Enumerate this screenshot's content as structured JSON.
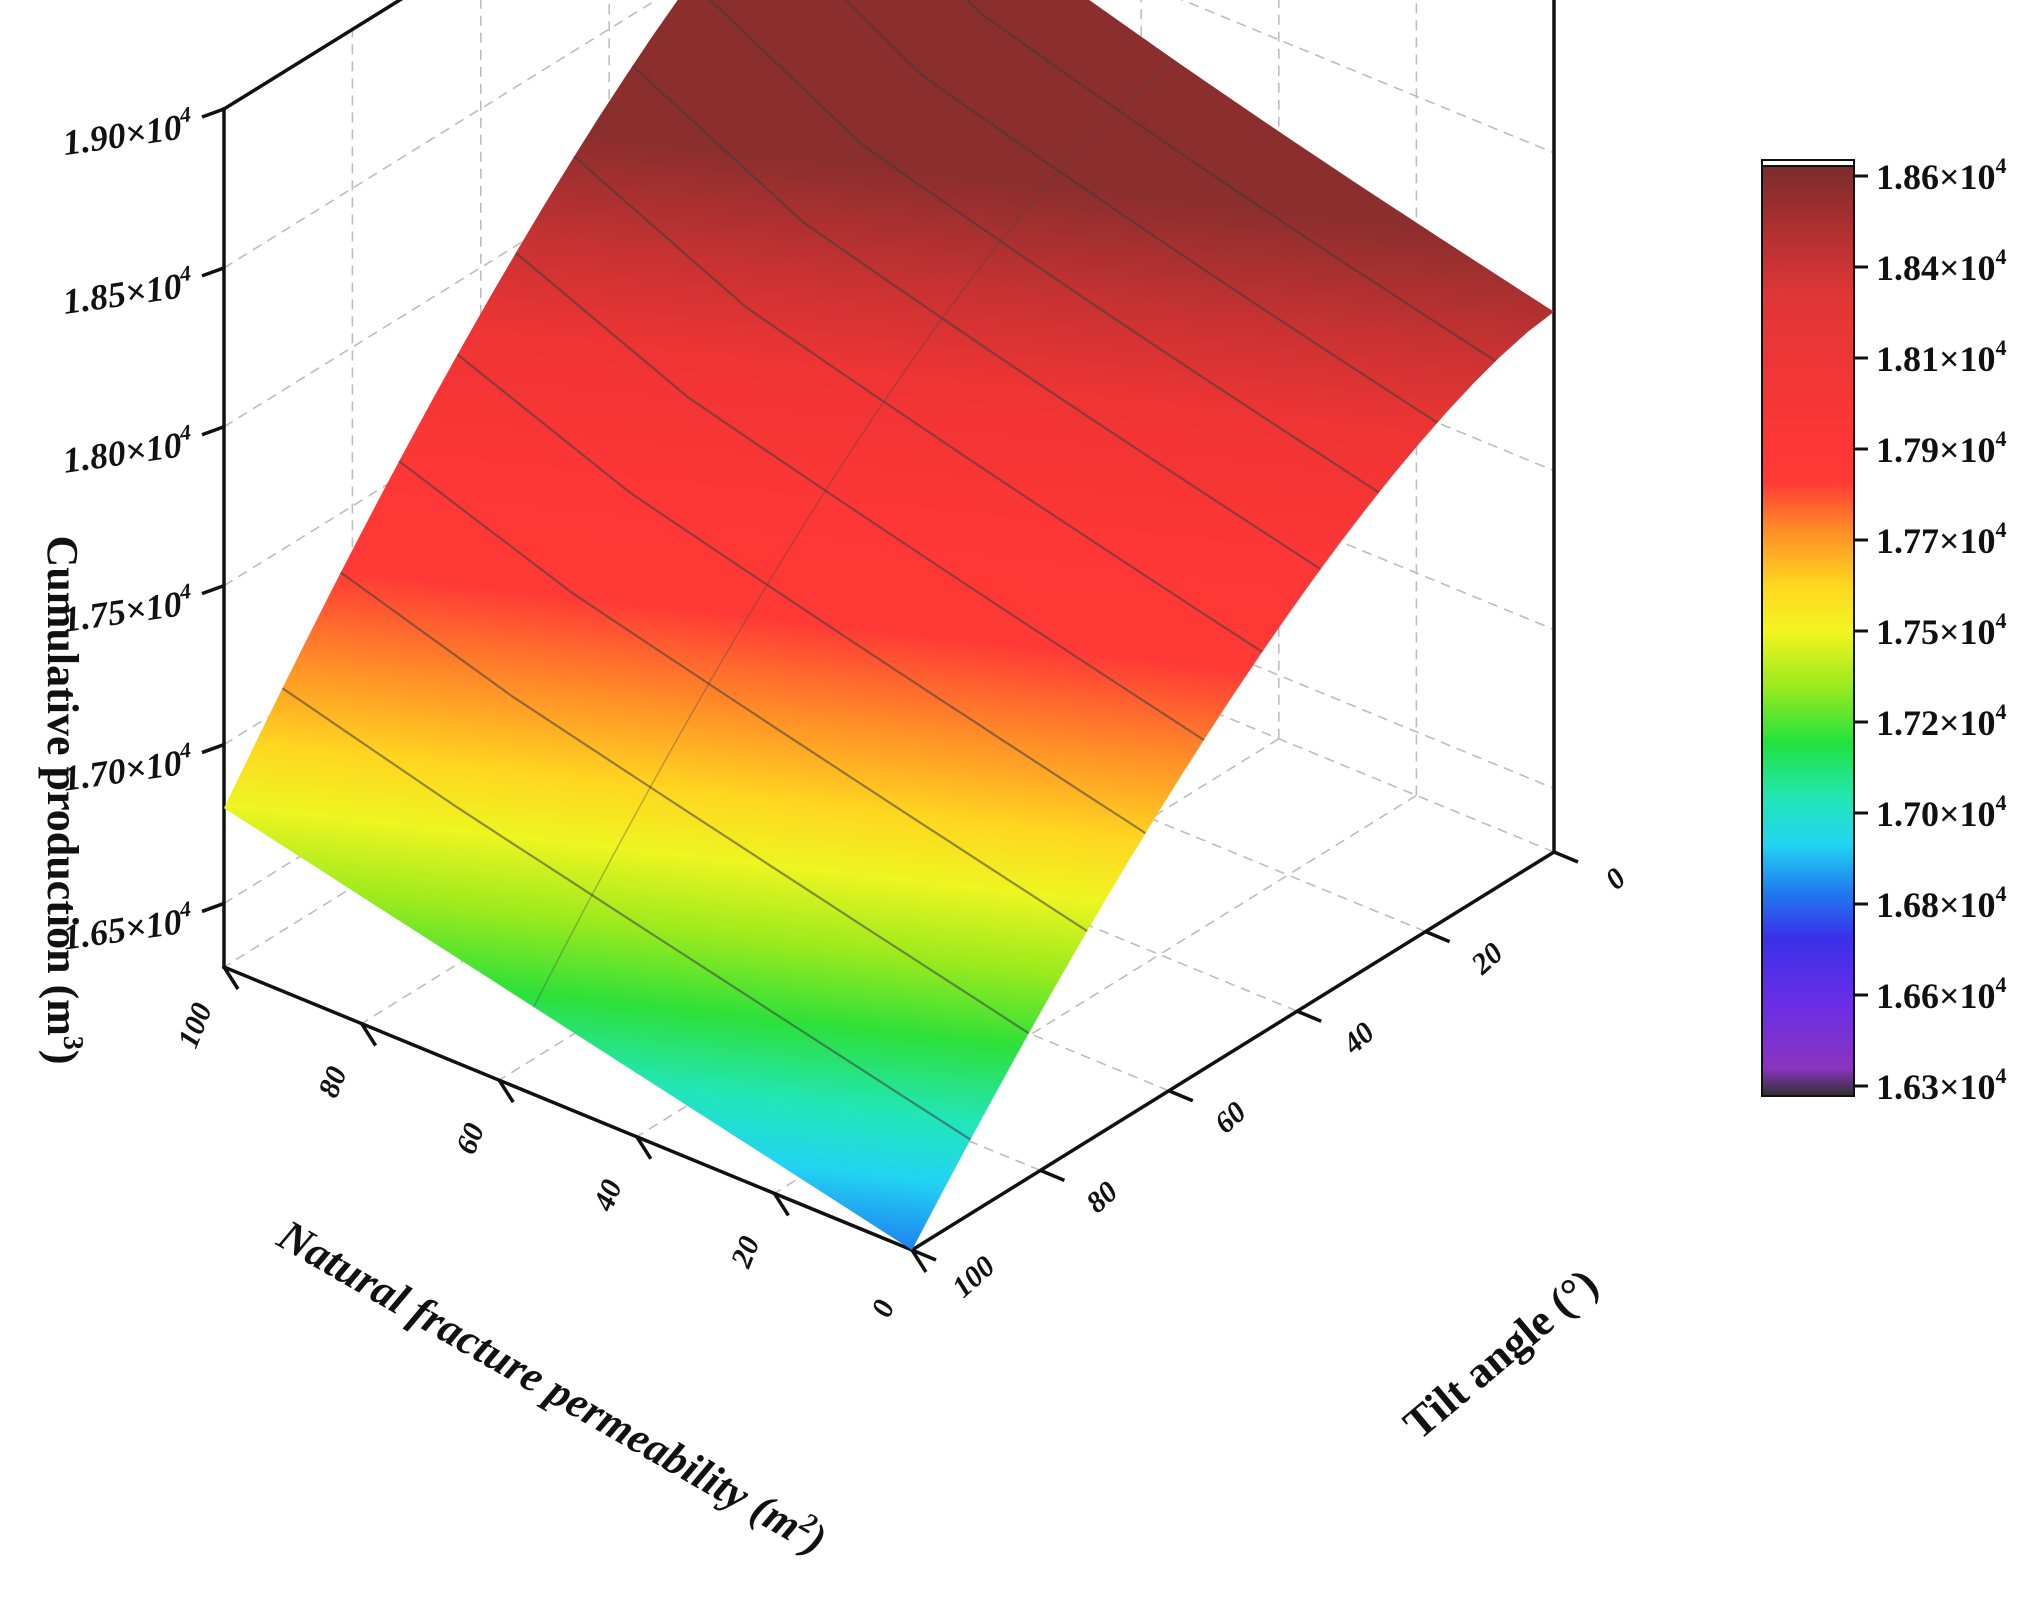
{
  "chart_data": {
    "type": "surface3d",
    "x_axis": {
      "label": "Natural fracture permeability (m",
      "label_sup": "2",
      "label_end": ")",
      "ticks": [
        "100",
        "80",
        "60",
        "40",
        "20",
        "0"
      ],
      "range": [
        0,
        100
      ]
    },
    "y_axis": {
      "label": "Tilt angle (°)",
      "ticks": [
        "0",
        "20",
        "40",
        "60",
        "80",
        "100"
      ],
      "range": [
        0,
        100
      ]
    },
    "z_axis": {
      "label": "Cumulative production (m",
      "label_sup": "3",
      "label_end": ")",
      "ticks": [
        {
          "mant": "1.65×10",
          "exp": "4"
        },
        {
          "mant": "1.70×10",
          "exp": "4"
        },
        {
          "mant": "1.75×10",
          "exp": "4"
        },
        {
          "mant": "1.80×10",
          "exp": "4"
        },
        {
          "mant": "1.85×10",
          "exp": "4"
        },
        {
          "mant": "1.90×10",
          "exp": "4"
        }
      ],
      "range": [
        16300,
        19000
      ]
    },
    "surface": {
      "corners": [
        {
          "permeability": 100,
          "tilt": 0,
          "production": 18600
        },
        {
          "permeability": 0,
          "tilt": 0,
          "production": 18000
        },
        {
          "permeability": 100,
          "tilt": 100,
          "production": 16800
        },
        {
          "permeability": 0,
          "tilt": 100,
          "production": 16300
        }
      ]
    },
    "colorbar": {
      "ticks": [
        {
          "mant": "1.86×10",
          "exp": "4"
        },
        {
          "mant": "1.84×10",
          "exp": "4"
        },
        {
          "mant": "1.81×10",
          "exp": "4"
        },
        {
          "mant": "1.79×10",
          "exp": "4"
        },
        {
          "mant": "1.77×10",
          "exp": "4"
        },
        {
          "mant": "1.75×10",
          "exp": "4"
        },
        {
          "mant": "1.72×10",
          "exp": "4"
        },
        {
          "mant": "1.70×10",
          "exp": "4"
        },
        {
          "mant": "1.68×10",
          "exp": "4"
        },
        {
          "mant": "1.66×10",
          "exp": "4"
        },
        {
          "mant": "1.63×10",
          "exp": "4"
        }
      ],
      "colors": [
        "#7a2b2b",
        "#a03030",
        "#d63a3a",
        "#f53535",
        "#ff3838",
        "#ff6b2a",
        "#ffb020",
        "#ffee22",
        "#c8f520",
        "#66e01e",
        "#22e23e",
        "#22e6a6",
        "#22e0f0",
        "#1ea6f0",
        "#2050f0",
        "#3a30e6",
        "#6a2ee0",
        "#8a34c8",
        "#7a3aa0",
        "#303030"
      ]
    },
    "grid": true
  }
}
